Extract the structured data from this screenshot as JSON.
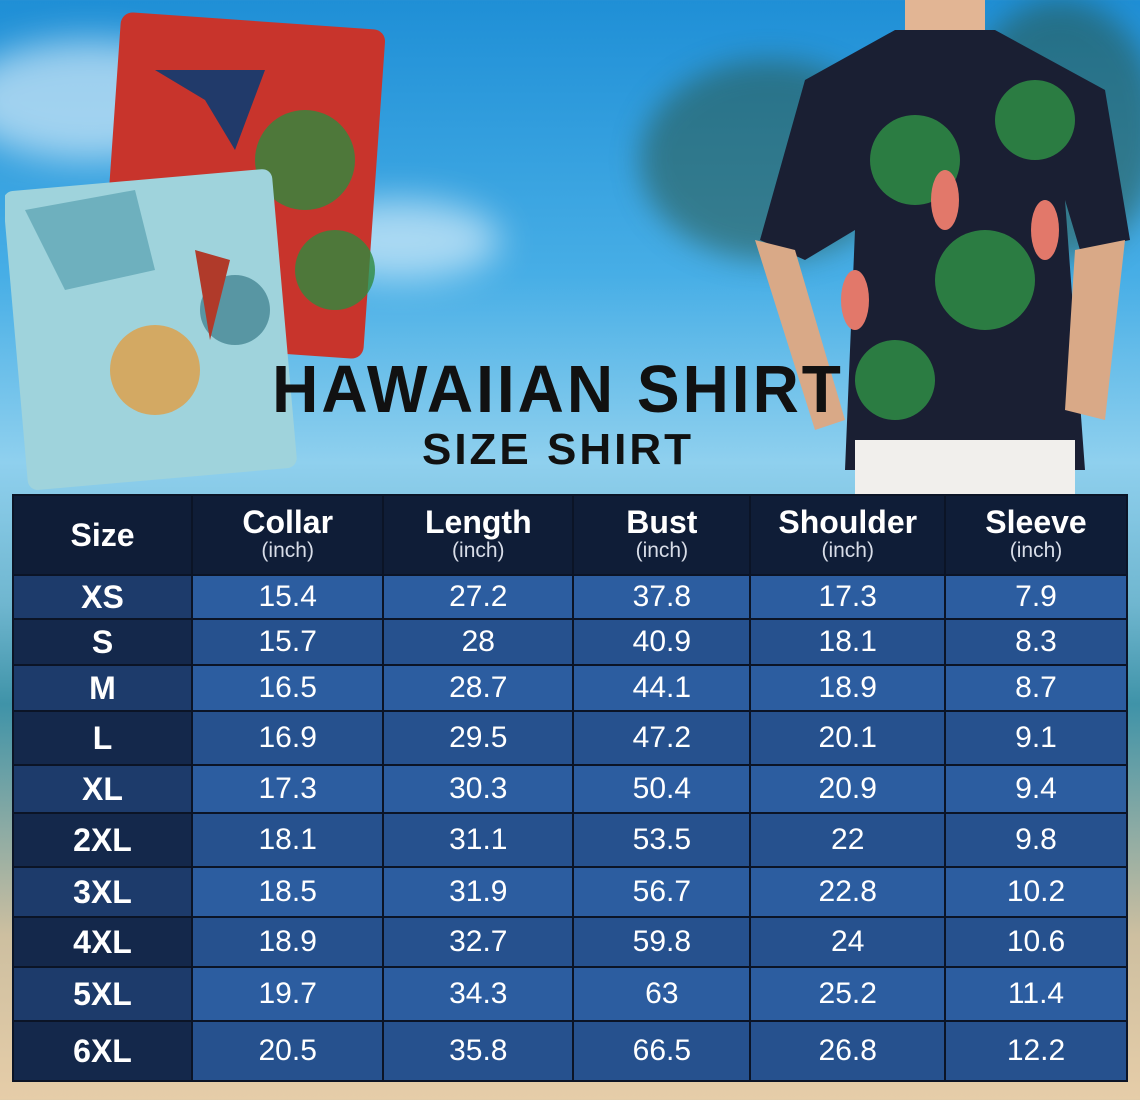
{
  "title": "HAWAIIAN SHIRT",
  "subtitle": "SIZE SHIRT",
  "table": {
    "headers": [
      {
        "label": "Size",
        "unit": ""
      },
      {
        "label": "Collar",
        "unit": "(inch)"
      },
      {
        "label": "Length",
        "unit": "(inch)"
      },
      {
        "label": "Bust",
        "unit": "(inch)"
      },
      {
        "label": "Shoulder",
        "unit": "(inch)"
      },
      {
        "label": "Sleeve",
        "unit": "(inch)"
      }
    ],
    "rows": [
      [
        "XS",
        "15.4",
        "27.2",
        "37.8",
        "17.3",
        "7.9"
      ],
      [
        "S",
        "15.7",
        "28",
        "40.9",
        "18.1",
        "8.3"
      ],
      [
        "M",
        "16.5",
        "28.7",
        "44.1",
        "18.9",
        "8.7"
      ],
      [
        "L",
        "16.9",
        "29.5",
        "47.2",
        "20.1",
        "9.1"
      ],
      [
        "XL",
        "17.3",
        "30.3",
        "50.4",
        "20.9",
        "9.4"
      ],
      [
        "2XL",
        "18.1",
        "31.1",
        "53.5",
        "22",
        "9.8"
      ],
      [
        "3XL",
        "18.5",
        "31.9",
        "56.7",
        "22.8",
        "10.2"
      ],
      [
        "4XL",
        "18.9",
        "32.7",
        "59.8",
        "24",
        "10.6"
      ],
      [
        "5XL",
        "19.7",
        "34.3",
        "63",
        "25.2",
        "11.4"
      ],
      [
        "6XL",
        "20.5",
        "35.8",
        "66.5",
        "26.8",
        "12.2"
      ]
    ]
  },
  "colors": {
    "header": "#0f1d37",
    "cell_light": "#2c5da0",
    "cell_dark": "#26518e",
    "size_col": "#14284b"
  }
}
